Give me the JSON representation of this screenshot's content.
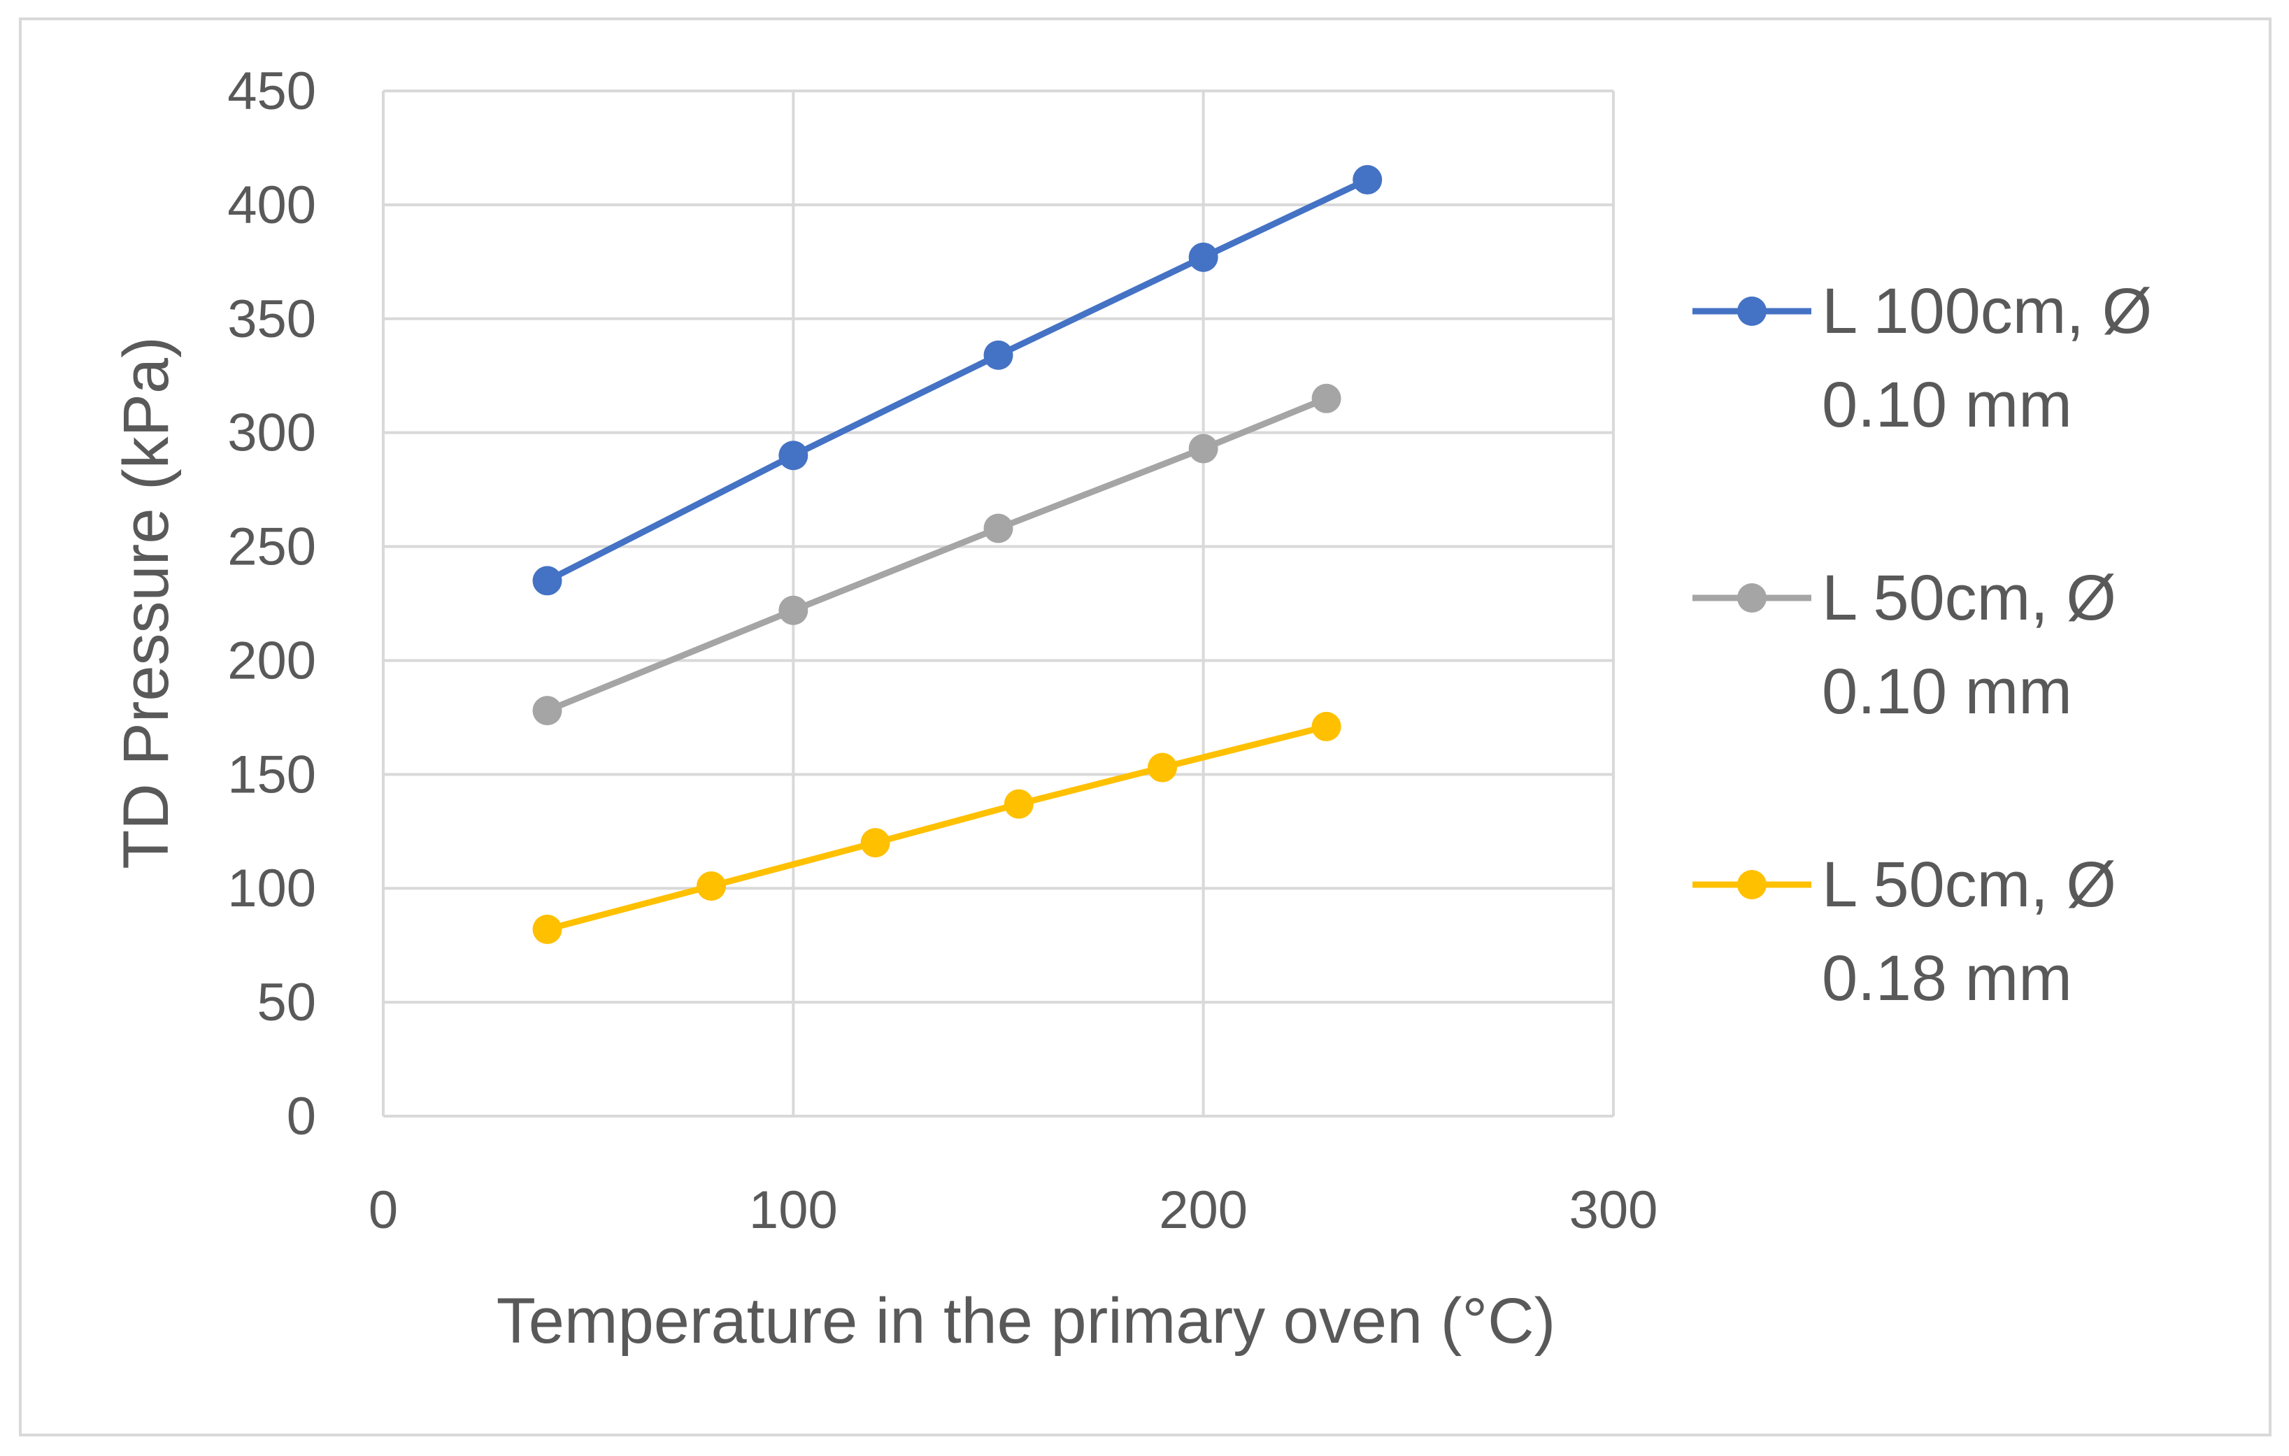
{
  "chart_data": {
    "type": "line",
    "title": "",
    "xlabel": "Temperature in the primary oven (°C)",
    "ylabel": "TD Pressure (kPa)",
    "xlim": [
      0,
      300
    ],
    "ylim": [
      0,
      450
    ],
    "xticks": [
      0,
      100,
      200,
      300
    ],
    "yticks": [
      0,
      50,
      100,
      150,
      200,
      250,
      300,
      350,
      400,
      450
    ],
    "grid": true,
    "legend_position": "right",
    "series": [
      {
        "name_line1": "L 100cm, Ø",
        "name_line2": "0.10 mm",
        "color": "#4472C4",
        "x": [
          40,
          100,
          150,
          200,
          240
        ],
        "y": [
          235,
          290,
          334,
          377,
          411
        ]
      },
      {
        "name_line1": "L 50cm, Ø",
        "name_line2": "0.10 mm",
        "color": "#A5A5A5",
        "x": [
          40,
          100,
          150,
          200,
          230
        ],
        "y": [
          178,
          222,
          258,
          293,
          315
        ]
      },
      {
        "name_line1": "L 50cm, Ø",
        "name_line2": "0.18 mm",
        "color": "#FFC000",
        "x": [
          40,
          80,
          120,
          155,
          190,
          230
        ],
        "y": [
          82,
          101,
          120,
          137,
          153,
          171
        ]
      }
    ]
  }
}
